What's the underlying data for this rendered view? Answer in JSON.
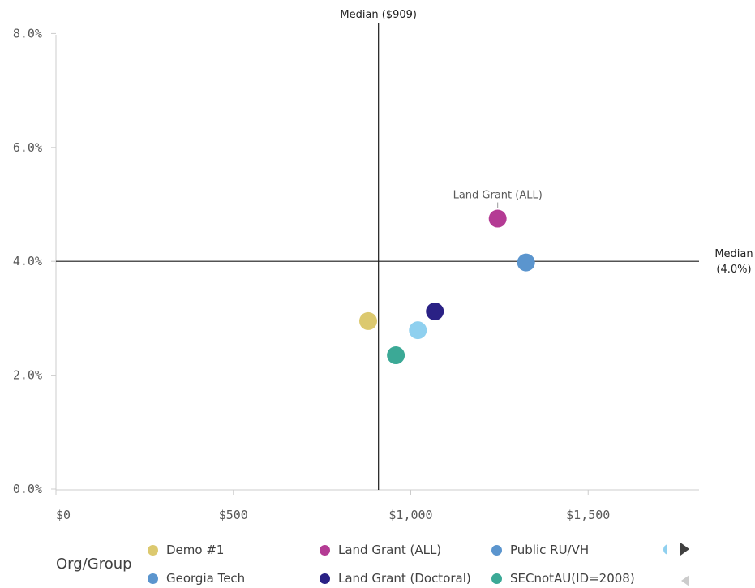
{
  "chart_data": {
    "type": "scatter",
    "title": "",
    "xlabel": "",
    "ylabel": "",
    "xlim": [
      0,
      1800
    ],
    "ylim": [
      0,
      8
    ],
    "x_ticks": [
      {
        "value": 0,
        "label": "$0"
      },
      {
        "value": 500,
        "label": "$500"
      },
      {
        "value": 1000,
        "label": "$1,000"
      },
      {
        "value": 1500,
        "label": "$1,500"
      }
    ],
    "y_ticks": [
      {
        "value": 0,
        "label": "0.0%"
      },
      {
        "value": 2,
        "label": "2.0%"
      },
      {
        "value": 4,
        "label": "4.0%"
      },
      {
        "value": 6,
        "label": "6.0%"
      },
      {
        "value": 8,
        "label": "8.0%"
      }
    ],
    "median_x": {
      "value": 909,
      "label": "Median ($909)"
    },
    "median_y": {
      "value": 4.0,
      "label_line1": "Median",
      "label_line2": "(4.0%)"
    },
    "points": [
      {
        "id": "demo-1",
        "x": 880,
        "y": 2.95,
        "color": "#dcc96f",
        "label": ""
      },
      {
        "id": "land-grant-all",
        "x": 1245,
        "y": 4.75,
        "color": "#b43b94",
        "label": "Land Grant (ALL)"
      },
      {
        "id": "public-ru-vh",
        "x": 1325,
        "y": 3.98,
        "color": "#5b95ce",
        "label": ""
      },
      {
        "id": "land-grant-doctoral",
        "x": 1068,
        "y": 3.12,
        "color": "#2a2185",
        "label": ""
      },
      {
        "id": "unlabeled-light-blue",
        "x": 1020,
        "y": 2.79,
        "color": "#8fd0ef",
        "label": ""
      },
      {
        "id": "secnotau",
        "x": 958,
        "y": 2.35,
        "color": "#3ba996",
        "label": ""
      }
    ]
  },
  "legend": {
    "title": "Org/Group",
    "items": [
      {
        "label": "Demo #1",
        "color": "#dcc96f"
      },
      {
        "label": "Land Grant (ALL)",
        "color": "#b43b94"
      },
      {
        "label": "Public RU/VH",
        "color": "#5b95ce"
      },
      {
        "label": "Georgia Tech",
        "color": "#5b95ce"
      },
      {
        "label": "Land Grant (Doctoral)",
        "color": "#2a2185"
      },
      {
        "label": "SECnotAU(ID=2008)",
        "color": "#3ba996"
      }
    ],
    "partial_color": "#8fd0ef"
  },
  "colors": {
    "axis": "#cccccc",
    "median_line": "#1a1a1a",
    "nav_active": "#404040",
    "nav_inactive": "#cccccc"
  }
}
